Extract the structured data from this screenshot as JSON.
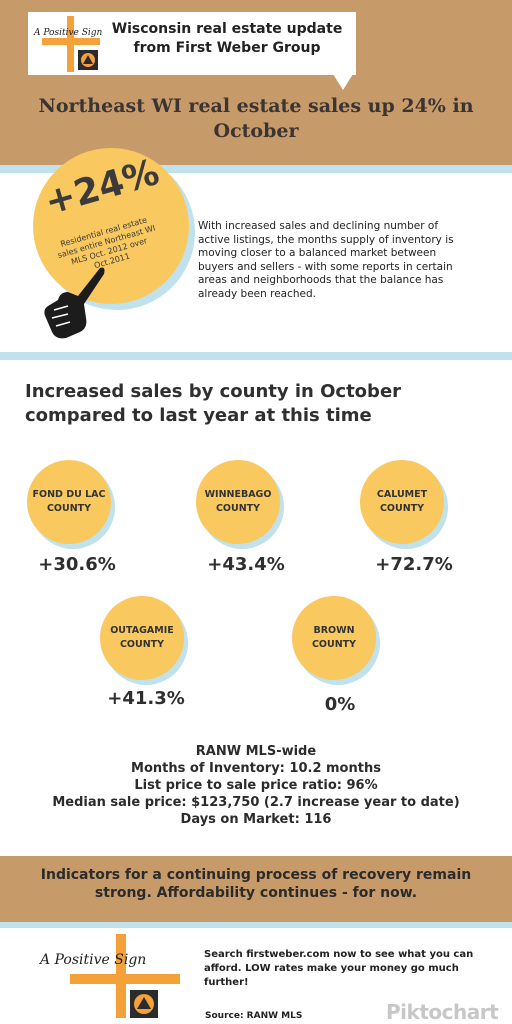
{
  "header": {
    "brand_line1": "Wisconsin real estate update",
    "brand_line2": "from First Weber Group",
    "logo_text": "A Positive Sign",
    "headline": "Northeast WI real estate sales up 24% in October"
  },
  "highlight": {
    "stat": "+24%",
    "caption": "Residential real estate sales entire Northeast WI MLS Oct. 2012 over Oct.2011",
    "intro": "With increased sales and declining number of active listings, the months supply of inventory is moving closer to a balanced market between buyers and sellers - with some reports in certain areas and neighborhoods that the balance has already been reached."
  },
  "counties_title": "Increased sales by county in October compared to last year at this time",
  "counties": [
    {
      "name": "FOND DU LAC\nCOUNTY",
      "change": "+30.6%"
    },
    {
      "name": "WINNEBAGO\nCOUNTY",
      "change": "+43.4%"
    },
    {
      "name": "CALUMET\nCOUNTY",
      "change": "+72.7%"
    },
    {
      "name": "OUTAGAMIE\nCOUNTY",
      "change": "+41.3%"
    },
    {
      "name": "BROWN\nCOUNTY",
      "change": "0%"
    }
  ],
  "mls": {
    "title": "RANW MLS-wide",
    "months_inventory": "Months of Inventory: 10.2 months",
    "list_ratio": "List price to sale price ratio: 96%",
    "median_price": "Median sale price: $123,750 (2.7 increase year to date)",
    "days_on_market": "Days on Market: 116"
  },
  "indicator": "Indicators for a continuing process of recovery remain strong.  Affordability continues - for now.",
  "footer": {
    "logo_text": "A Positive Sign",
    "cta": "Search firstweber.com now to see what you can afford. LOW rates make your money go much further!",
    "source": "Source: RANW MLS",
    "watermark": "Piktochart"
  },
  "colors": {
    "tan": "#c79a6a",
    "circle": "#f9c85f",
    "stripe": "#bfe2ee",
    "cross": "#f4a13a"
  }
}
